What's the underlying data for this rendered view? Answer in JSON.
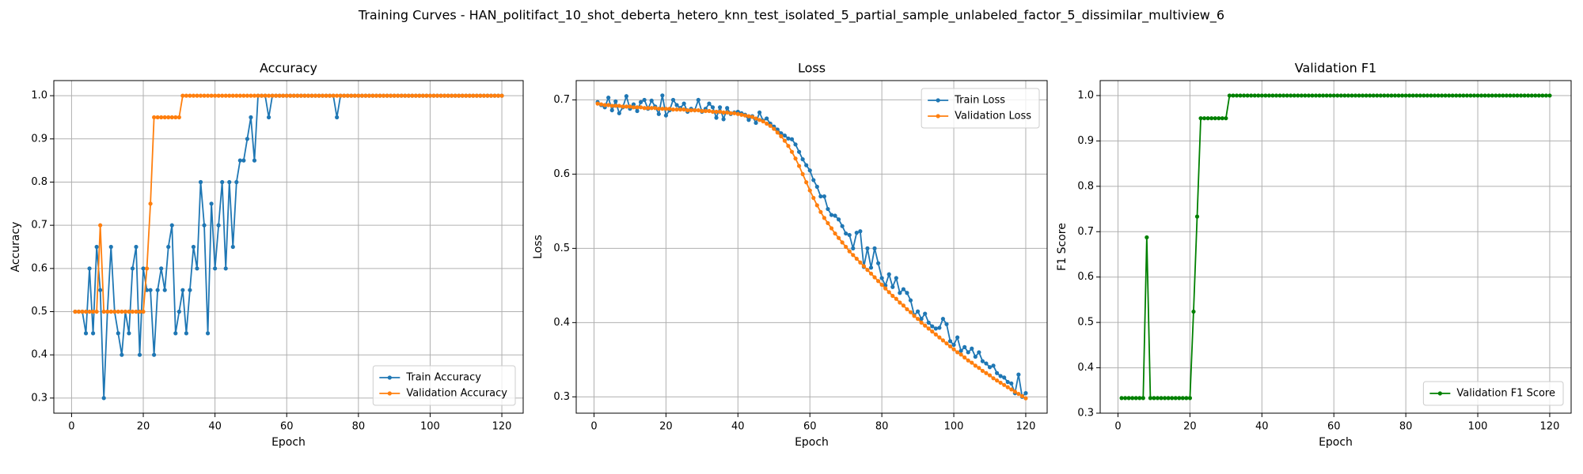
{
  "title": "Training Curves - HAN_politifact_10_shot_deberta_hetero_knn_test_isolated_5_partial_sample_unlabeled_factor_5_dissimilar_multiview_6",
  "chart_data": [
    {
      "type": "line",
      "title": "Accuracy",
      "xlabel": "Epoch",
      "ylabel": "Accuracy",
      "x": [
        1,
        2,
        3,
        4,
        5,
        6,
        7,
        8,
        9,
        10,
        11,
        12,
        13,
        14,
        15,
        16,
        17,
        18,
        19,
        20,
        21,
        22,
        23,
        24,
        25,
        26,
        27,
        28,
        29,
        30,
        31,
        32,
        33,
        34,
        35,
        36,
        37,
        38,
        39,
        40,
        41,
        42,
        43,
        44,
        45,
        46,
        47,
        48,
        49,
        50,
        51,
        52,
        53,
        54,
        55,
        56,
        57,
        58,
        59,
        60,
        61,
        62,
        63,
        64,
        65,
        66,
        67,
        68,
        69,
        70,
        71,
        72,
        73,
        74,
        75,
        76,
        77,
        78,
        79,
        80,
        81,
        82,
        83,
        84,
        85,
        86,
        87,
        88,
        89,
        90,
        91,
        92,
        93,
        94,
        95,
        96,
        97,
        98,
        99,
        100,
        101,
        102,
        103,
        104,
        105,
        106,
        107,
        108,
        109,
        110,
        111,
        112,
        113,
        114,
        115,
        116,
        117,
        118,
        119,
        120
      ],
      "series": [
        {
          "name": "Train Accuracy",
          "color": "#1f77b4",
          "values": [
            0.5,
            0.5,
            0.5,
            0.45,
            0.6,
            0.45,
            0.65,
            0.55,
            0.3,
            0.5,
            0.65,
            0.5,
            0.45,
            0.4,
            0.5,
            0.45,
            0.6,
            0.65,
            0.4,
            0.6,
            0.55,
            0.55,
            0.4,
            0.55,
            0.6,
            0.55,
            0.65,
            0.7,
            0.45,
            0.5,
            0.55,
            0.45,
            0.55,
            0.65,
            0.6,
            0.8,
            0.7,
            0.45,
            0.75,
            0.6,
            0.7,
            0.8,
            0.6,
            0.8,
            0.65,
            0.8,
            0.85,
            0.85,
            0.9,
            0.95,
            0.85,
            1,
            1,
            1,
            0.95,
            1,
            1,
            1,
            1,
            1,
            1,
            1,
            1,
            1,
            1,
            1,
            1,
            1,
            1,
            1,
            1,
            1,
            1,
            0.95,
            1,
            1,
            1,
            1,
            1,
            1,
            1,
            1,
            1,
            1,
            1,
            1,
            1,
            1,
            1,
            1,
            1,
            1,
            1,
            1,
            1,
            1,
            1,
            1,
            1,
            1,
            1,
            1,
            1,
            1,
            1,
            1,
            1,
            1,
            1,
            1,
            1,
            1,
            1,
            1,
            1,
            1,
            1,
            1,
            1,
            1
          ]
        },
        {
          "name": "Validation Accuracy",
          "color": "#ff7f0e",
          "values": [
            0.5,
            0.5,
            0.5,
            0.5,
            0.5,
            0.5,
            0.5,
            0.7,
            0.5,
            0.5,
            0.5,
            0.5,
            0.5,
            0.5,
            0.5,
            0.5,
            0.5,
            0.5,
            0.5,
            0.5,
            0.6,
            0.75,
            0.95,
            0.95,
            0.95,
            0.95,
            0.95,
            0.95,
            0.95,
            0.95,
            1,
            1,
            1,
            1,
            1,
            1,
            1,
            1,
            1,
            1,
            1,
            1,
            1,
            1,
            1,
            1,
            1,
            1,
            1,
            1,
            1,
            1,
            1,
            1,
            1,
            1,
            1,
            1,
            1,
            1,
            1,
            1,
            1,
            1,
            1,
            1,
            1,
            1,
            1,
            1,
            1,
            1,
            1,
            1,
            1,
            1,
            1,
            1,
            1,
            1,
            1,
            1,
            1,
            1,
            1,
            1,
            1,
            1,
            1,
            1,
            1,
            1,
            1,
            1,
            1,
            1,
            1,
            1,
            1,
            1,
            1,
            1,
            1,
            1,
            1,
            1,
            1,
            1,
            1,
            1,
            1,
            1,
            1,
            1,
            1,
            1,
            1,
            1,
            1,
            1
          ]
        }
      ],
      "xlim": [
        -4.95,
        125.95
      ],
      "ylim": [
        0.265,
        1.035
      ],
      "xticks": [
        0,
        20,
        40,
        60,
        80,
        100,
        120
      ],
      "yticks": [
        0.3,
        0.4,
        0.5,
        0.6,
        0.7,
        0.8,
        0.9,
        {
          "value": 1,
          "label": "1.0"
        }
      ],
      "grid": true,
      "legend": "lower right"
    },
    {
      "type": "line",
      "title": "Loss",
      "xlabel": "Epoch",
      "ylabel": "Loss",
      "x": [
        1,
        2,
        3,
        4,
        5,
        6,
        7,
        8,
        9,
        10,
        11,
        12,
        13,
        14,
        15,
        16,
        17,
        18,
        19,
        20,
        21,
        22,
        23,
        24,
        25,
        26,
        27,
        28,
        29,
        30,
        31,
        32,
        33,
        34,
        35,
        36,
        37,
        38,
        39,
        40,
        41,
        42,
        43,
        44,
        45,
        46,
        47,
        48,
        49,
        50,
        51,
        52,
        53,
        54,
        55,
        56,
        57,
        58,
        59,
        60,
        61,
        62,
        63,
        64,
        65,
        66,
        67,
        68,
        69,
        70,
        71,
        72,
        73,
        74,
        75,
        76,
        77,
        78,
        79,
        80,
        81,
        82,
        83,
        84,
        85,
        86,
        87,
        88,
        89,
        90,
        91,
        92,
        93,
        94,
        95,
        96,
        97,
        98,
        99,
        100,
        101,
        102,
        103,
        104,
        105,
        106,
        107,
        108,
        109,
        110,
        111,
        112,
        113,
        114,
        115,
        116,
        117,
        118,
        119,
        120
      ],
      "series": [
        {
          "name": "Train Loss",
          "color": "#1f77b4",
          "values": [
            0.697,
            0.693,
            0.69,
            0.703,
            0.686,
            0.698,
            0.682,
            0.69,
            0.705,
            0.688,
            0.694,
            0.685,
            0.697,
            0.7,
            0.688,
            0.699,
            0.691,
            0.681,
            0.706,
            0.679,
            0.686,
            0.7,
            0.693,
            0.689,
            0.695,
            0.684,
            0.688,
            0.686,
            0.7,
            0.684,
            0.688,
            0.695,
            0.69,
            0.676,
            0.69,
            0.674,
            0.689,
            0.681,
            0.683,
            0.684,
            0.682,
            0.68,
            0.673,
            0.678,
            0.669,
            0.683,
            0.672,
            0.675,
            0.668,
            0.664,
            0.66,
            0.655,
            0.652,
            0.648,
            0.647,
            0.64,
            0.63,
            0.62,
            0.612,
            0.605,
            0.592,
            0.583,
            0.57,
            0.57,
            0.553,
            0.545,
            0.544,
            0.539,
            0.53,
            0.52,
            0.518,
            0.5,
            0.521,
            0.523,
            0.475,
            0.5,
            0.474,
            0.5,
            0.48,
            0.46,
            0.45,
            0.465,
            0.448,
            0.46,
            0.44,
            0.445,
            0.44,
            0.43,
            0.41,
            0.415,
            0.405,
            0.412,
            0.4,
            0.395,
            0.392,
            0.393,
            0.405,
            0.398,
            0.375,
            0.37,
            0.38,
            0.362,
            0.367,
            0.36,
            0.365,
            0.354,
            0.36,
            0.348,
            0.345,
            0.34,
            0.342,
            0.332,
            0.328,
            0.326,
            0.32,
            0.318,
            0.305,
            0.33,
            0.3,
            0.305
          ]
        },
        {
          "name": "Validation Loss",
          "color": "#ff7f0e",
          "values": [
            0.695,
            0.694,
            0.693,
            0.693,
            0.692,
            0.692,
            0.692,
            0.691,
            0.691,
            0.691,
            0.69,
            0.69,
            0.69,
            0.689,
            0.689,
            0.689,
            0.689,
            0.688,
            0.688,
            0.688,
            0.688,
            0.687,
            0.687,
            0.687,
            0.687,
            0.686,
            0.686,
            0.686,
            0.686,
            0.685,
            0.685,
            0.685,
            0.684,
            0.684,
            0.684,
            0.683,
            0.683,
            0.682,
            0.682,
            0.681,
            0.68,
            0.679,
            0.678,
            0.677,
            0.675,
            0.673,
            0.671,
            0.668,
            0.665,
            0.661,
            0.656,
            0.651,
            0.645,
            0.638,
            0.63,
            0.621,
            0.611,
            0.6,
            0.589,
            0.578,
            0.568,
            0.558,
            0.549,
            0.541,
            0.534,
            0.527,
            0.52,
            0.514,
            0.508,
            0.502,
            0.496,
            0.491,
            0.486,
            0.481,
            0.476,
            0.471,
            0.466,
            0.461,
            0.456,
            0.451,
            0.446,
            0.441,
            0.436,
            0.432,
            0.427,
            0.423,
            0.418,
            0.414,
            0.409,
            0.405,
            0.4,
            0.396,
            0.392,
            0.388,
            0.384,
            0.38,
            0.376,
            0.372,
            0.368,
            0.364,
            0.36,
            0.357,
            0.353,
            0.349,
            0.346,
            0.342,
            0.339,
            0.335,
            0.332,
            0.329,
            0.325,
            0.322,
            0.319,
            0.316,
            0.313,
            0.31,
            0.307,
            0.304,
            0.301,
            0.298
          ]
        }
      ],
      "xlim": [
        -4.95,
        125.95
      ],
      "ylim": [
        0.278,
        0.726
      ],
      "xticks": [
        0,
        20,
        40,
        60,
        80,
        100,
        120
      ],
      "yticks": [
        0.3,
        0.4,
        0.5,
        0.6,
        0.7
      ],
      "grid": true,
      "legend": "upper right"
    },
    {
      "type": "line",
      "title": "Validation F1",
      "xlabel": "Epoch",
      "ylabel": "F1 Score",
      "x": [
        1,
        2,
        3,
        4,
        5,
        6,
        7,
        8,
        9,
        10,
        11,
        12,
        13,
        14,
        15,
        16,
        17,
        18,
        19,
        20,
        21,
        22,
        23,
        24,
        25,
        26,
        27,
        28,
        29,
        30,
        31,
        32,
        33,
        34,
        35,
        36,
        37,
        38,
        39,
        40,
        41,
        42,
        43,
        44,
        45,
        46,
        47,
        48,
        49,
        50,
        51,
        52,
        53,
        54,
        55,
        56,
        57,
        58,
        59,
        60,
        61,
        62,
        63,
        64,
        65,
        66,
        67,
        68,
        69,
        70,
        71,
        72,
        73,
        74,
        75,
        76,
        77,
        78,
        79,
        80,
        81,
        82,
        83,
        84,
        85,
        86,
        87,
        88,
        89,
        90,
        91,
        92,
        93,
        94,
        95,
        96,
        97,
        98,
        99,
        100,
        101,
        102,
        103,
        104,
        105,
        106,
        107,
        108,
        109,
        110,
        111,
        112,
        113,
        114,
        115,
        116,
        117,
        118,
        119,
        120
      ],
      "series": [
        {
          "name": "Validation F1 Score",
          "color": "#008000",
          "values": [
            0.3333,
            0.3333,
            0.3333,
            0.3333,
            0.3333,
            0.3333,
            0.3333,
            0.6875,
            0.3333,
            0.3333,
            0.3333,
            0.3333,
            0.3333,
            0.3333,
            0.3333,
            0.3333,
            0.3333,
            0.3333,
            0.3333,
            0.3333,
            0.5238,
            0.7333,
            0.95,
            0.95,
            0.95,
            0.95,
            0.95,
            0.95,
            0.95,
            0.95,
            1,
            1,
            1,
            1,
            1,
            1,
            1,
            1,
            1,
            1,
            1,
            1,
            1,
            1,
            1,
            1,
            1,
            1,
            1,
            1,
            1,
            1,
            1,
            1,
            1,
            1,
            1,
            1,
            1,
            1,
            1,
            1,
            1,
            1,
            1,
            1,
            1,
            1,
            1,
            1,
            1,
            1,
            1,
            1,
            1,
            1,
            1,
            1,
            1,
            1,
            1,
            1,
            1,
            1,
            1,
            1,
            1,
            1,
            1,
            1,
            1,
            1,
            1,
            1,
            1,
            1,
            1,
            1,
            1,
            1,
            1,
            1,
            1,
            1,
            1,
            1,
            1,
            1,
            1,
            1,
            1,
            1,
            1,
            1,
            1,
            1,
            1,
            1,
            1,
            1
          ]
        }
      ],
      "xlim": [
        -4.95,
        125.95
      ],
      "ylim": [
        0.3,
        1.033
      ],
      "xticks": [
        0,
        20,
        40,
        60,
        80,
        100,
        120
      ],
      "yticks": [
        0.3,
        0.4,
        0.5,
        0.6,
        0.7,
        0.8,
        0.9,
        {
          "value": 1,
          "label": "1.0"
        }
      ],
      "grid": true,
      "legend": "lower right"
    }
  ]
}
